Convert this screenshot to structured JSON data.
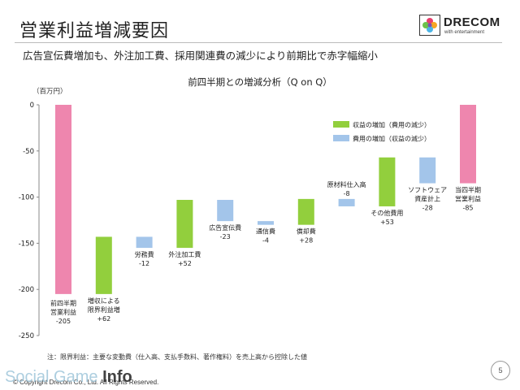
{
  "header": {
    "title": "営業利益増減要因",
    "logo_name": "DRECOM",
    "logo_tagline": "with entertainment"
  },
  "subtitle": "広告宣伝費増加も、外注加工費、採用関連費の減少により前期比で赤字幅縮小",
  "footnote": "注：限界利益：主要な変動費（仕入高、支払手数料、著作権料）を売上高から控除した値",
  "page_number": "5",
  "copyright": "© Copyright Drecom Co., Ltd. All Rights Reserved.",
  "watermark": {
    "text": "Social Game ",
    "bold": "Info"
  },
  "colors": {
    "pink": "#ee86ae",
    "green": "#92cf3d",
    "blue": "#a3c5ea"
  },
  "chart_data": {
    "type": "bar",
    "subtype": "waterfall",
    "title": "前四半期との増減分析（Q on Q）",
    "ylabel": "（百万円）",
    "ylim": [
      -250,
      0
    ],
    "yticks": [
      0,
      -50,
      -100,
      -150,
      -200,
      -250
    ],
    "grid": false,
    "legend": [
      {
        "label": "収益の増加（費用の減少）",
        "color": "green"
      },
      {
        "label": "費用の増加（収益の減少）",
        "color": "blue"
      }
    ],
    "legend_position": "top-right",
    "bars": [
      {
        "label": [
          "前四半期",
          "営業利益"
        ],
        "value_text": "-205",
        "start": 0,
        "end": -205,
        "kind": "total",
        "color": "pink",
        "label_pos": "inside-bottom"
      },
      {
        "label": [
          "増収による",
          "限界利益増"
        ],
        "value_text": "+62",
        "start": -205,
        "end": -143,
        "kind": "increase",
        "color": "green",
        "label_pos": "below"
      },
      {
        "label": [
          "労務費"
        ],
        "value_text": "-12",
        "start": -143,
        "end": -155,
        "kind": "decrease",
        "color": "blue",
        "label_pos": "below"
      },
      {
        "label": [
          "外注加工費"
        ],
        "value_text": "+52",
        "start": -155,
        "end": -103,
        "kind": "increase",
        "color": "green",
        "label_pos": "below"
      },
      {
        "label": [
          "広告宣伝費"
        ],
        "value_text": "-23",
        "start": -103,
        "end": -126,
        "kind": "decrease",
        "color": "blue",
        "label_pos": "below"
      },
      {
        "label": [
          "通信費"
        ],
        "value_text": "-4",
        "start": -126,
        "end": -130,
        "kind": "decrease",
        "color": "blue",
        "label_pos": "below"
      },
      {
        "label": [
          "償却費"
        ],
        "value_text": "+28",
        "start": -130,
        "end": -102,
        "kind": "increase",
        "color": "green",
        "label_pos": "below"
      },
      {
        "label": [
          "原材料仕入高"
        ],
        "value_text": "-8",
        "start": -102,
        "end": -110,
        "kind": "decrease",
        "color": "blue",
        "label_pos": "above"
      },
      {
        "label": [
          "その他費用"
        ],
        "value_text": "+53",
        "start": -110,
        "end": -57,
        "kind": "increase",
        "color": "green",
        "label_pos": "below"
      },
      {
        "label": [
          "ソフトウェア",
          "資産計上"
        ],
        "value_text": "-28",
        "start": -57,
        "end": -85,
        "kind": "decrease",
        "color": "blue",
        "label_pos": "below"
      },
      {
        "label": [
          "当四半期",
          "営業利益"
        ],
        "value_text": "-85",
        "start": 0,
        "end": -85,
        "kind": "total",
        "color": "pink",
        "label_pos": "below"
      }
    ]
  }
}
